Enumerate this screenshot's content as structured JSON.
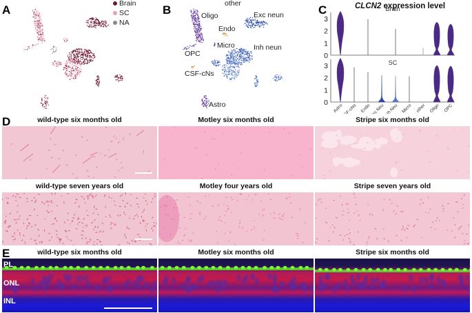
{
  "panels": {
    "A": {
      "letter": "A",
      "legend": [
        {
          "label": "Brain",
          "color": "#6b1a33"
        },
        {
          "label": "SC",
          "color": "#e8a0b4"
        },
        {
          "label": "NA",
          "color": "#888888"
        }
      ]
    },
    "B": {
      "letter": "B",
      "cluster_labels": [
        "other",
        "Oligo",
        "Exc neun",
        "Endo",
        "Micro",
        "Inh neun",
        "OPC",
        "CSF-cNs",
        "Astro"
      ],
      "colors": {
        "oligo": "#6a3fa0",
        "neuron_dark": "#2a4aa8",
        "neuron_light": "#7b98d6",
        "endo": "#e08a3c"
      }
    },
    "C": {
      "letter": "C",
      "title_gene": "CLCN2",
      "title_rest": " expression level"
    },
    "D": {
      "letter": "D",
      "images": [
        {
          "title": "wild-type six months old",
          "scalebar": true
        },
        {
          "title": "Motley six months old",
          "scalebar": false
        },
        {
          "title": "Stripe six months old",
          "scalebar": false
        },
        {
          "title": "wild-type seven years old",
          "scalebar": true
        },
        {
          "title": "Motley four years old",
          "scalebar": false
        },
        {
          "title": "Stripe seven years old",
          "scalebar": false
        }
      ]
    },
    "E": {
      "letter": "E",
      "images": [
        {
          "title": "wild-type six months old",
          "scalebar": true
        },
        {
          "title": "Motley six months old",
          "scalebar": false
        },
        {
          "title": "Stripe six months old",
          "scalebar": false
        }
      ],
      "layer_labels": [
        "PL",
        "ONL",
        "INL"
      ]
    }
  },
  "chart_data": {
    "type": "violin",
    "title": "CLCN2 expression level",
    "categories": [
      "Astro",
      "CSF-cNs",
      "Endo",
      "Exc Neu",
      "Inh Neu",
      "Micro",
      "other",
      "Oligo",
      "OPC"
    ],
    "ylim": [
      0,
      3.5
    ],
    "yticks": [
      0,
      1,
      2,
      3
    ],
    "facets": [
      {
        "name": "Brain",
        "max_values": [
          3.6,
          null,
          2.95,
          0.05,
          2.15,
          null,
          0.6,
          2.7,
          2.55
        ],
        "shape": [
          "wide-top",
          "none",
          "line",
          "none",
          "line",
          "none",
          "line",
          "bimodal",
          "bimodal"
        ],
        "colors": [
          "#4b2a86",
          "#555555",
          "#555555",
          "#555555",
          "#555555",
          "#555555",
          "#999999",
          "#4b2a86",
          "#4b2a86"
        ]
      },
      {
        "name": "SC",
        "max_values": [
          3.6,
          2.85,
          2.45,
          2.2,
          2.15,
          2.1,
          null,
          3.0,
          2.95
        ],
        "shape": [
          "wide-mid",
          "line",
          "line",
          "base",
          "base",
          "line",
          "none",
          "bimodal",
          "bimodal"
        ],
        "colors": [
          "#4b2a86",
          "#555555",
          "#555555",
          "#2a4aa0",
          "#5a78c0",
          "#555555",
          "#555555",
          "#4b2a86",
          "#4b2a86"
        ]
      }
    ]
  }
}
